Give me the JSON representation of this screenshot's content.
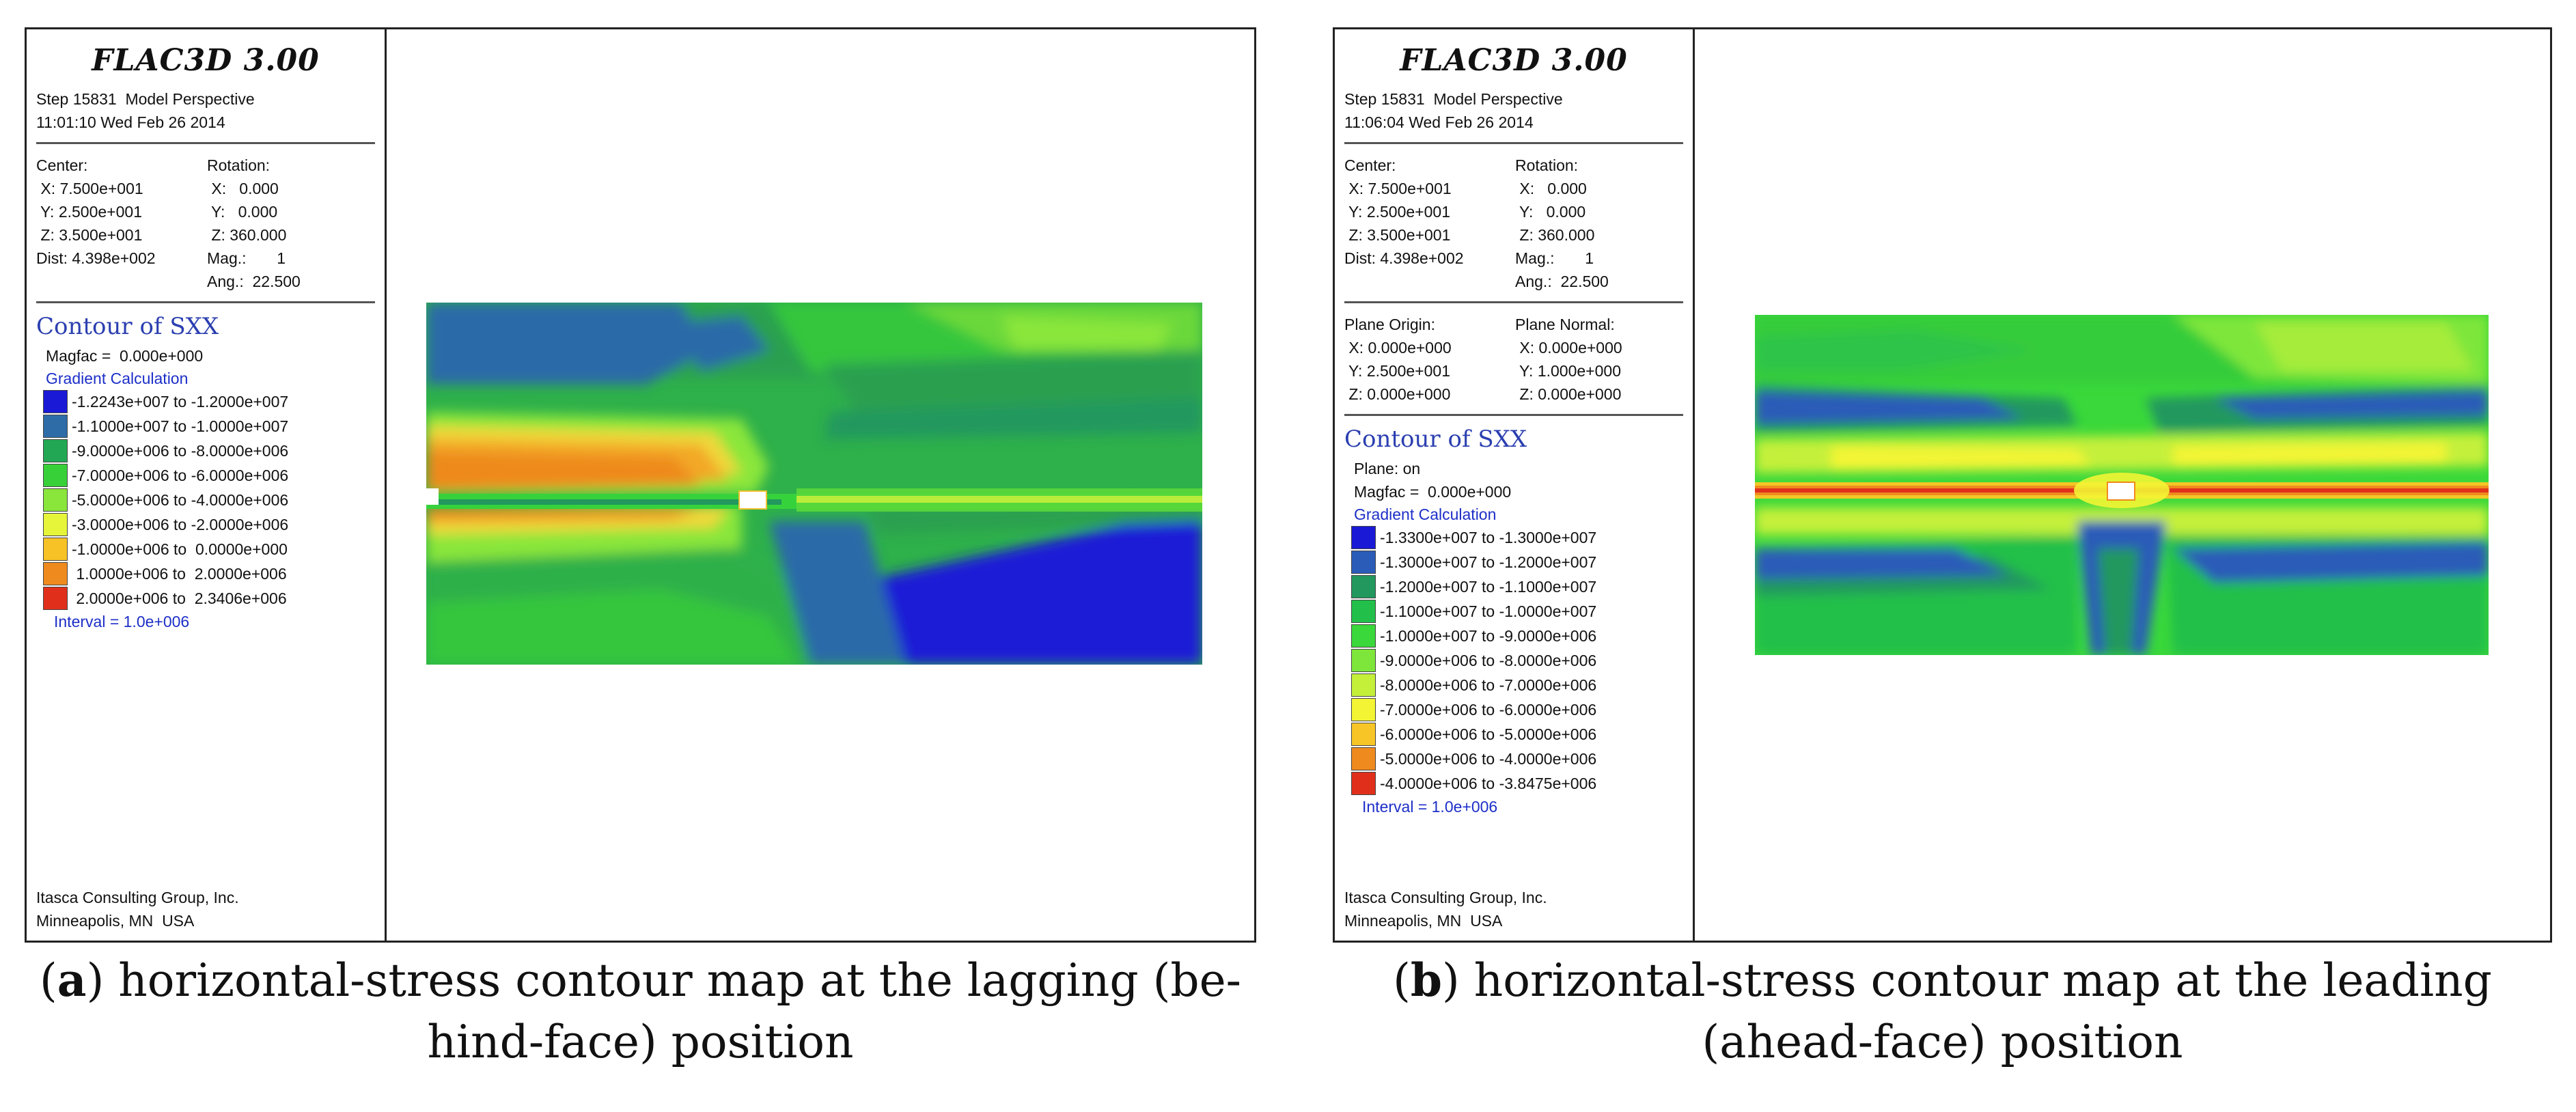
{
  "panels": {
    "a": {
      "app_title": "FLAC3D 3.00",
      "step_line": "Step 15831  Model Perspective",
      "time_line": "11:01:10 Wed Feb 26 2014",
      "center": {
        "label": "Center:",
        "x": " X: 7.500e+001",
        "y": " Y: 2.500e+001",
        "z": " Z: 3.500e+001",
        "dist": "Dist: 4.398e+002"
      },
      "rotation": {
        "label": "Rotation:",
        "x": " X:   0.000",
        "y": " Y:   0.000",
        "z": " Z: 360.000",
        "mag": "Mag.:       1",
        "ang": "Ang.:  22.500"
      },
      "contour_title": "Contour of SXX",
      "magfac": "Magfac =  0.000e+000",
      "gradient": "Gradient Calculation",
      "legend": [
        {
          "label": "-1.2243e+007 to -1.2000e+007",
          "color": "#1a1ad6"
        },
        {
          "label": "-1.1000e+007 to -1.0000e+007",
          "color": "#2e6ca8"
        },
        {
          "label": "-9.0000e+006 to -8.0000e+006",
          "color": "#22a855"
        },
        {
          "label": "-7.0000e+006 to -6.0000e+006",
          "color": "#38d038"
        },
        {
          "label": "-5.0000e+006 to -4.0000e+006",
          "color": "#8ae63a"
        },
        {
          "label": "-3.0000e+006 to -2.0000e+006",
          "color": "#e6f53a"
        },
        {
          "label": "-1.0000e+006 to  0.0000e+000",
          "color": "#f7c226"
        },
        {
          "label": " 1.0000e+006 to  2.0000e+006",
          "color": "#ef8a1e"
        },
        {
          "label": " 2.0000e+006 to  2.3406e+006",
          "color": "#e0301c"
        }
      ],
      "interval": "Interval =  1.0e+006",
      "credit1": "Itasca Consulting Group, Inc.",
      "credit2": "Minneapolis, MN  USA",
      "caption_letter": "a",
      "caption_text": " horizontal-stress contour map at the lagging (be-",
      "caption_text2": "hind-face) position"
    },
    "b": {
      "app_title": "FLAC3D 3.00",
      "step_line": "Step 15831  Model Perspective",
      "time_line": "11:06:04 Wed Feb 26 2014",
      "center": {
        "label": "Center:",
        "x": " X: 7.500e+001",
        "y": " Y: 2.500e+001",
        "z": " Z: 3.500e+001",
        "dist": "Dist: 4.398e+002"
      },
      "rotation": {
        "label": "Rotation:",
        "x": " X:   0.000",
        "y": " Y:   0.000",
        "z": " Z: 360.000",
        "mag": "Mag.:       1",
        "ang": "Ang.:  22.500"
      },
      "plane_origin": {
        "label": "Plane Origin:",
        "x": " X: 0.000e+000",
        "y": " Y: 2.500e+001",
        "z": " Z: 0.000e+000"
      },
      "plane_normal": {
        "label": "Plane Normal:",
        "x": " X: 0.000e+000",
        "y": " Y: 1.000e+000",
        "z": " Z: 0.000e+000"
      },
      "contour_title": "Contour of SXX",
      "plane_on": "Plane: on",
      "magfac": "Magfac =  0.000e+000",
      "gradient": "Gradient Calculation",
      "legend": [
        {
          "label": "-1.3300e+007 to -1.3000e+007",
          "color": "#1a1ad6"
        },
        {
          "label": "-1.3000e+007 to -1.2000e+007",
          "color": "#2a5cb8"
        },
        {
          "label": "-1.2000e+007 to -1.1000e+007",
          "color": "#22985e"
        },
        {
          "label": "-1.1000e+007 to -1.0000e+007",
          "color": "#22c04a"
        },
        {
          "label": "-1.0000e+007 to -9.0000e+006",
          "color": "#3ad83a"
        },
        {
          "label": "-9.0000e+006 to -8.0000e+006",
          "color": "#7ee63a"
        },
        {
          "label": "-8.0000e+006 to -7.0000e+006",
          "color": "#c4f03a"
        },
        {
          "label": "-7.0000e+006 to -6.0000e+006",
          "color": "#f3f534"
        },
        {
          "label": "-6.0000e+006 to -5.0000e+006",
          "color": "#f7c626"
        },
        {
          "label": "-5.0000e+006 to -4.0000e+006",
          "color": "#ef8a1e"
        },
        {
          "label": "-4.0000e+006 to -3.8475e+006",
          "color": "#e0301c"
        }
      ],
      "interval": "Interval =  1.0e+006",
      "credit1": "Itasca Consulting Group, Inc.",
      "credit2": "Minneapolis, MN  USA",
      "caption_letter": "b",
      "caption_text": " horizontal-stress contour map at the leading",
      "caption_text2": "(ahead-face) position"
    }
  }
}
